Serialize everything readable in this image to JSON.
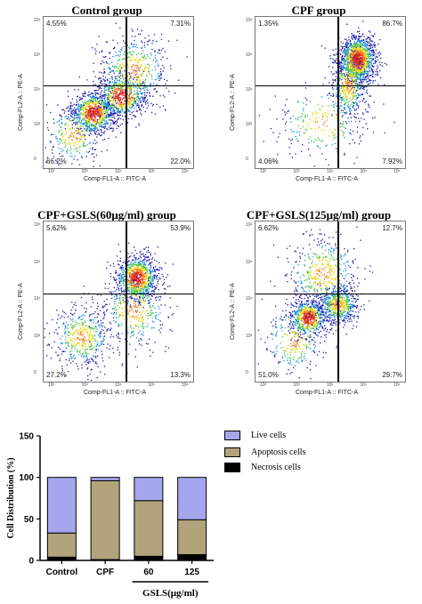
{
  "flow_panels": [
    {
      "title": "Control group",
      "q": [
        "4.55%",
        "7.31%",
        "66.2%",
        "22.0%"
      ],
      "ylabel": "Comp-FL2-A :: PE-A",
      "xlabel": "Comp-FL1-A :: FITC-A"
    },
    {
      "title": "CPF group",
      "q": [
        "1.35%",
        "86.7%",
        "4.06%",
        "7.92%"
      ],
      "ylabel": "Comp-FL2-A :: PE-A",
      "xlabel": "Comp-FL1-A :: FITC-A"
    },
    {
      "title": "CPF+GSLS(60μg/ml) group",
      "q": [
        "5.62%",
        "53.9%",
        "27.2%",
        "13.3%"
      ],
      "ylabel": "Comp-FL2-A :: PE-A",
      "xlabel": "Comp-FL1-A :: FITC-A"
    },
    {
      "title": "CPF+GSLS(125μg/ml) group",
      "q": [
        "6.62%",
        "12.7%",
        "51.0%",
        "29.7%"
      ],
      "ylabel": "Comp-FL2-A :: PE-A",
      "xlabel": "Comp-FL1-A :: FITC-A"
    }
  ],
  "tick_labels": {
    "y": [
      "10⁶",
      "10⁵",
      "10⁴",
      "10³",
      "0"
    ],
    "x": [
      "10²",
      "10³",
      "10⁴",
      "10⁵",
      "10⁶"
    ]
  },
  "chart_data": {
    "type": "bar",
    "stacked": true,
    "categories": [
      "Control",
      "CPF",
      "60",
      "125"
    ],
    "group_label": "GSLS(μg/ml)",
    "ylabel": "Cell Distribution (%)",
    "ylim": [
      0,
      150
    ],
    "yticks": [
      "0",
      "50",
      "100",
      "150"
    ],
    "series": [
      {
        "name": "Necrosis cells",
        "values": [
          4,
          1,
          5,
          7
        ],
        "color": "#000000"
      },
      {
        "name": "Apoptosis cells",
        "values": [
          29,
          95,
          67,
          42
        ],
        "color": "#b1a47c"
      },
      {
        "name": "Live cells",
        "values": [
          67,
          4,
          28,
          51
        ],
        "color": "#a6a6ee"
      }
    ],
    "legend_order": [
      "Live cells",
      "Apoptosis cells",
      "Necrosis cells"
    ],
    "legend_position": "top-right"
  }
}
